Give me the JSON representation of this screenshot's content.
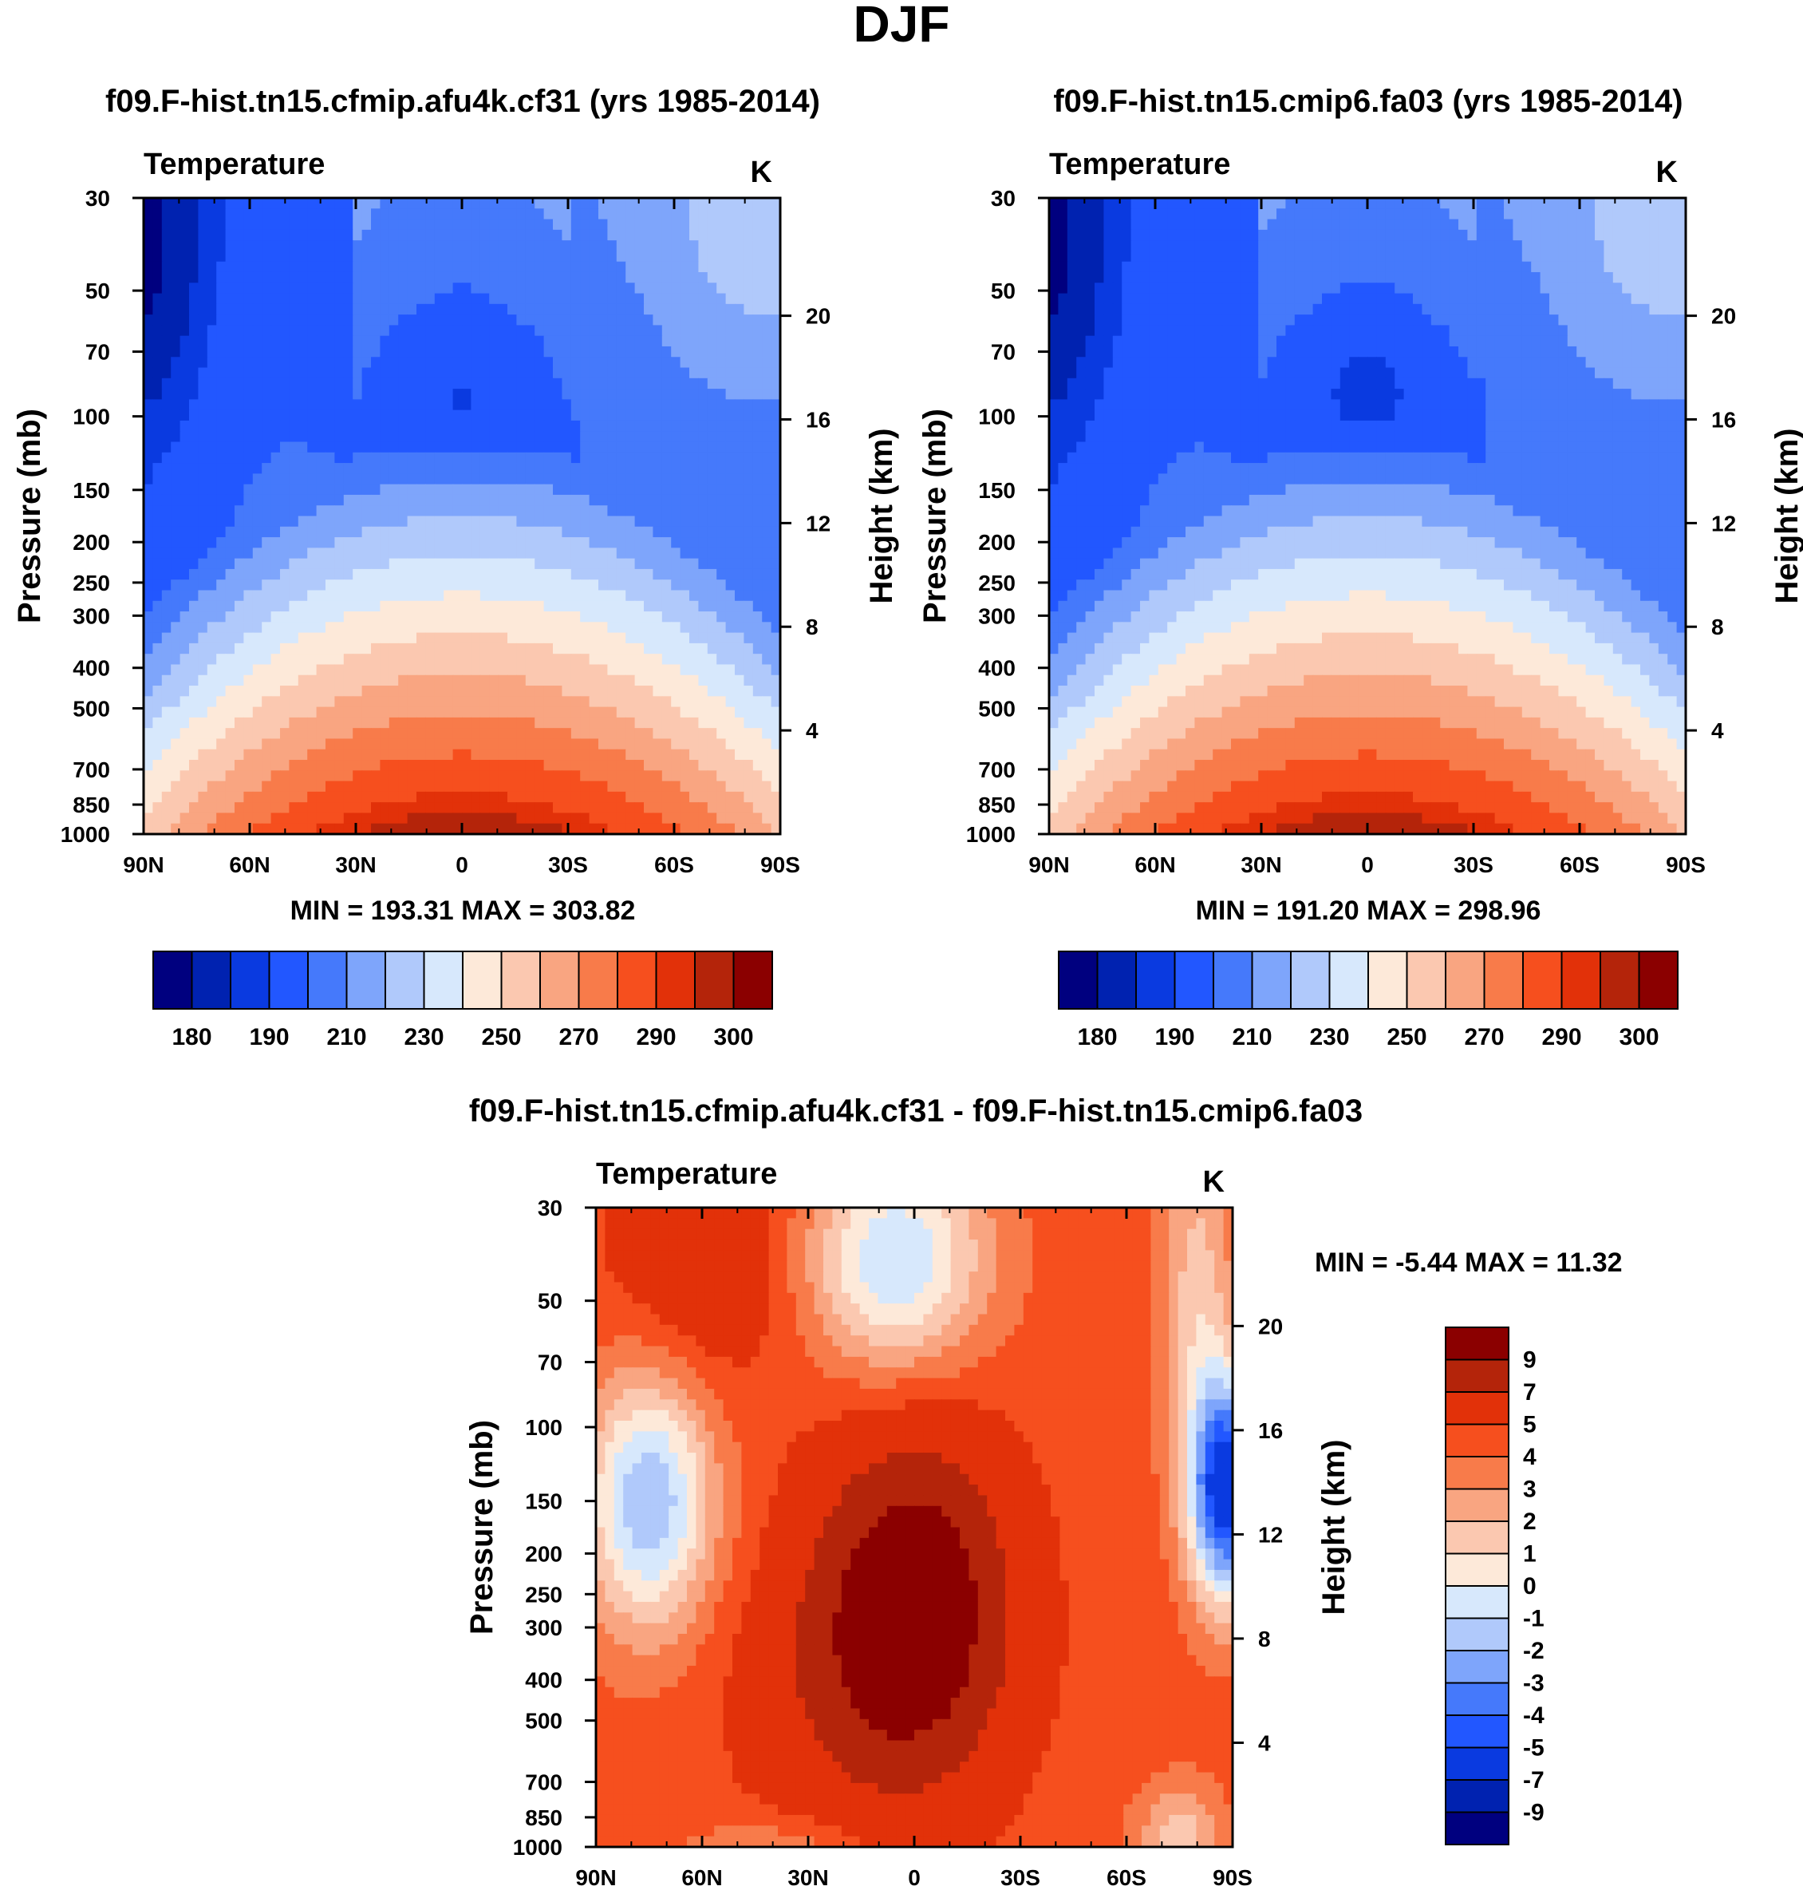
{
  "figure_title": "DJF",
  "colors": {
    "temperature_palette": [
      "#00007f",
      "#0022b0",
      "#0a3ae0",
      "#2257ff",
      "#4579fb",
      "#7ea5fb",
      "#b0c9fb",
      "#d7e8fc",
      "#fde9d9",
      "#fbc8b0",
      "#f9a581",
      "#f87b4a",
      "#f64f1e",
      "#e23109",
      "#b4240a",
      "#8b0000"
    ],
    "difference_palette_top_to_bottom": [
      "#8b0000",
      "#b4240a",
      "#e23109",
      "#f64f1e",
      "#f87b4a",
      "#f9a581",
      "#fbc8b0",
      "#fde9d9",
      "#d7e8fc",
      "#b0c9fb",
      "#7ea5fb",
      "#4579fb",
      "#2257ff",
      "#0a3ae0",
      "#0022b0",
      "#00007f"
    ]
  },
  "chart_data": [
    {
      "id": "case-panel",
      "type": "heatmap",
      "title": "f09.F-hist.tn15.cfmip.afu4k.cf31 (yrs 1985-2014)",
      "field_label": "Temperature",
      "units": "K",
      "ylabel": "Pressure (mb)",
      "ylabel_right": "Height (km)",
      "x_ticks": [
        "90N",
        "60N",
        "30N",
        "0",
        "30S",
        "60S",
        "90S"
      ],
      "x_values": [
        90,
        60,
        30,
        0,
        -30,
        -60,
        -90
      ],
      "y_ticks": [
        30,
        50,
        70,
        100,
        150,
        200,
        250,
        300,
        400,
        500,
        700,
        850,
        1000
      ],
      "height_ticks": [
        4,
        8,
        12,
        16,
        20
      ],
      "ylim": [
        1000,
        30
      ],
      "stats": "MIN = 193.31  MAX = 303.82",
      "contour_levels": [
        180,
        185,
        190,
        200,
        210,
        220,
        230,
        240,
        250,
        260,
        270,
        280,
        290,
        295,
        300
      ],
      "colorbar_labels": [
        "180",
        "190",
        "210",
        "230",
        "250",
        "270",
        "290",
        "300"
      ],
      "colorbar_label_box_index": [
        1,
        3,
        5,
        7,
        9,
        11,
        13,
        15
      ],
      "tropopause_min_temperature": 193.3
    },
    {
      "id": "control-panel",
      "type": "heatmap",
      "title": "f09.F-hist.tn15.cmip6.fa03 (yrs 1985-2014)",
      "field_label": "Temperature",
      "units": "K",
      "ylabel": "Pressure (mb)",
      "ylabel_right": "Height (km)",
      "x_ticks": [
        "90N",
        "60N",
        "30N",
        "0",
        "30S",
        "60S",
        "90S"
      ],
      "x_values": [
        90,
        60,
        30,
        0,
        -30,
        -60,
        -90
      ],
      "y_ticks": [
        30,
        50,
        70,
        100,
        150,
        200,
        250,
        300,
        400,
        500,
        700,
        850,
        1000
      ],
      "height_ticks": [
        4,
        8,
        12,
        16,
        20
      ],
      "ylim": [
        1000,
        30
      ],
      "stats": "MIN = 191.20  MAX = 298.96",
      "contour_levels": [
        180,
        185,
        190,
        200,
        210,
        220,
        230,
        240,
        250,
        260,
        270,
        280,
        290,
        295,
        300
      ],
      "colorbar_labels": [
        "180",
        "190",
        "210",
        "230",
        "250",
        "270",
        "290",
        "300"
      ],
      "colorbar_label_box_index": [
        1,
        3,
        5,
        7,
        9,
        11,
        13,
        15
      ],
      "tropopause_min_temperature": 191.2
    },
    {
      "id": "diff-panel",
      "type": "heatmap",
      "title": "f09.F-hist.tn15.cfmip.afu4k.cf31 - f09.F-hist.tn15.cmip6.fa03",
      "field_label": "Temperature",
      "units": "K",
      "ylabel": "Pressure (mb)",
      "ylabel_right": "Height (km)",
      "x_ticks": [
        "90N",
        "60N",
        "30N",
        "0",
        "30S",
        "60S",
        "90S"
      ],
      "x_values": [
        90,
        60,
        30,
        0,
        -30,
        -60,
        -90
      ],
      "y_ticks": [
        30,
        50,
        70,
        100,
        150,
        200,
        250,
        300,
        400,
        500,
        700,
        850,
        1000
      ],
      "height_ticks": [
        4,
        8,
        12,
        16,
        20
      ],
      "ylim": [
        1000,
        30
      ],
      "stats": "MIN =  -5.44  MAX =  11.32",
      "contour_levels": [
        -9,
        -7,
        -5,
        -4,
        -3,
        -2,
        -1,
        0,
        1,
        2,
        3,
        4,
        5,
        7,
        9
      ],
      "colorbar_labels": [
        "9",
        "7",
        "5",
        "4",
        "3",
        "2",
        "1",
        "0",
        "-1",
        "-2",
        "-3",
        "-4",
        "-5",
        "-7",
        "-9"
      ],
      "colorbar_label_box_index": [
        1,
        2,
        3,
        4,
        5,
        6,
        7,
        8,
        9,
        10,
        11,
        12,
        13,
        14,
        15
      ]
    }
  ]
}
